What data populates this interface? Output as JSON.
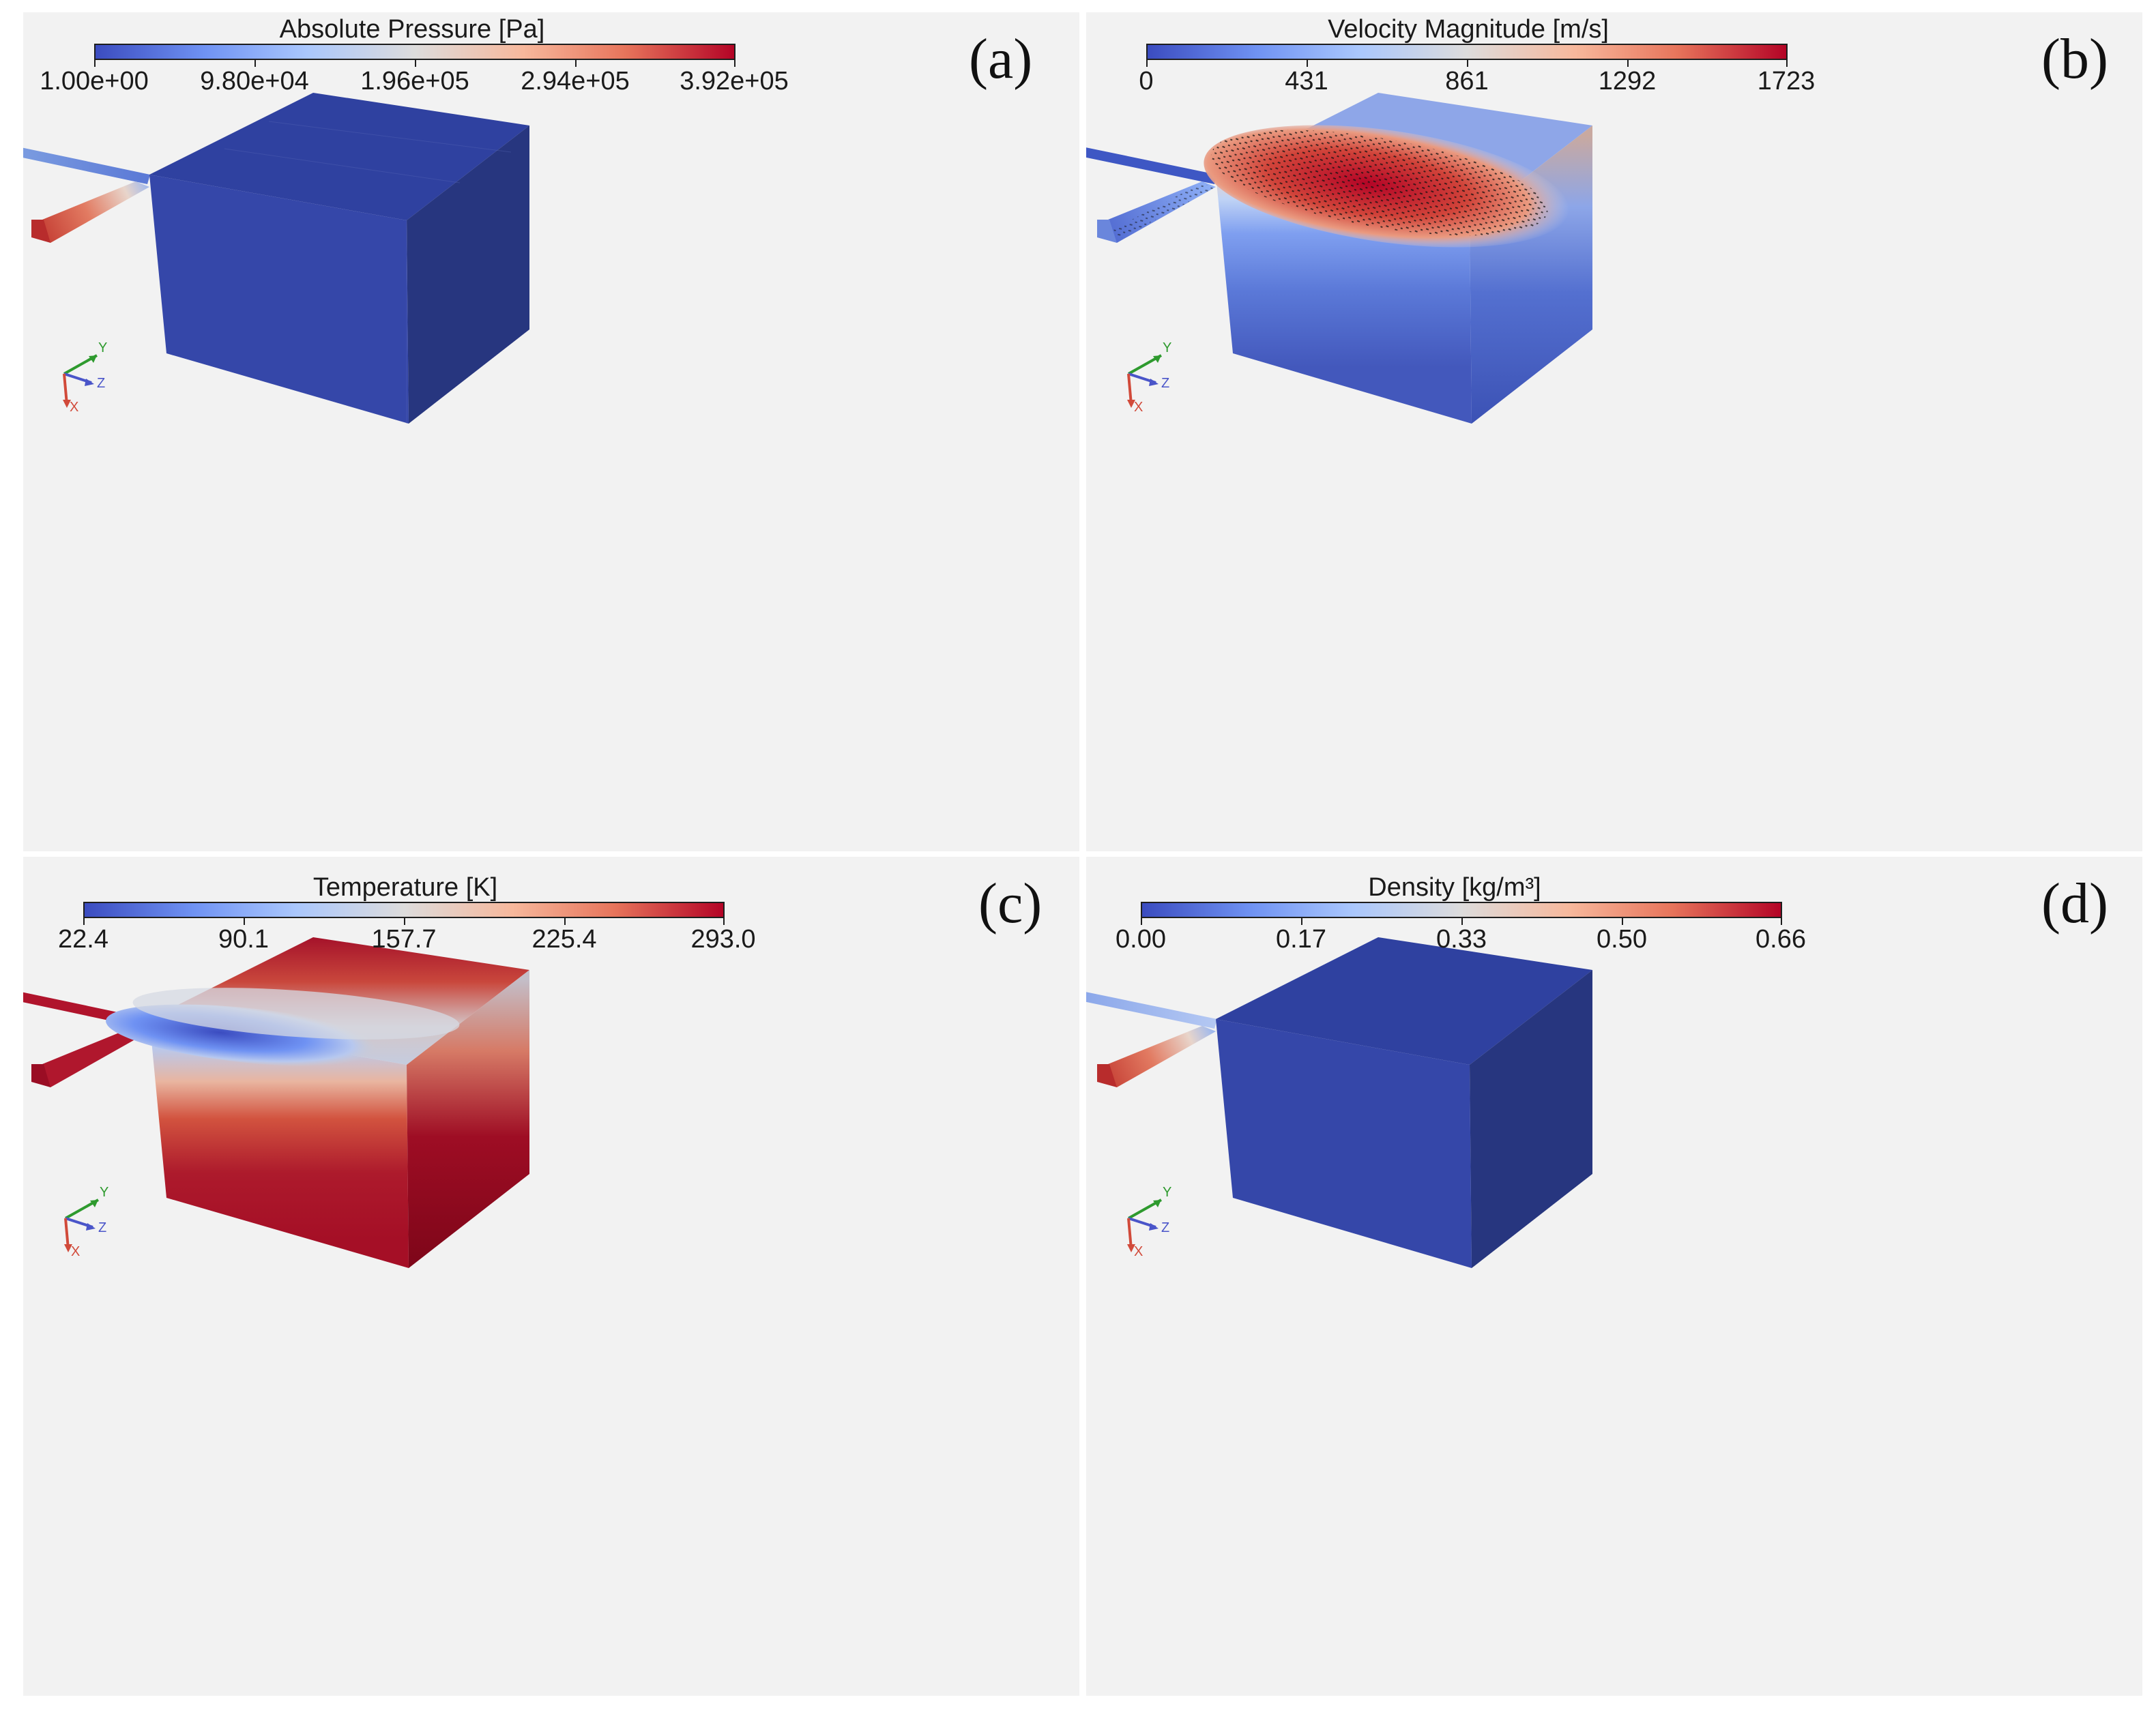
{
  "colormap": [
    "#3b4cc0",
    "#6f92f3",
    "#aac7fd",
    "#dddcdc",
    "#f7b89c",
    "#e7745b",
    "#b40426"
  ],
  "panels": [
    {
      "letter": "(a)",
      "colorbar": {
        "title": "Absolute Pressure [Pa]",
        "labels": [
          "1.00e+00",
          "9.80e+04",
          "1.96e+05",
          "2.94e+05",
          "3.92e+05"
        ]
      },
      "axes": {
        "x": "X",
        "y": "Y",
        "z": "Z"
      }
    },
    {
      "letter": "(b)",
      "colorbar": {
        "title": "Velocity Magnitude [m/s]",
        "labels": [
          "0",
          "431",
          "861",
          "1292",
          "1723"
        ]
      },
      "axes": {
        "x": "X",
        "y": "Y",
        "z": "Z"
      }
    },
    {
      "letter": "(c)",
      "colorbar": {
        "title": "Temperature [K]",
        "labels": [
          "22.4",
          "90.1",
          "157.7",
          "225.4",
          "293.0"
        ]
      },
      "axes": {
        "x": "X",
        "y": "Y",
        "z": "Z"
      }
    },
    {
      "letter": "(d)",
      "colorbar": {
        "title": "Density [kg/m³]",
        "labels": [
          "0.00",
          "0.17",
          "0.33",
          "0.50",
          "0.66"
        ]
      },
      "axes": {
        "x": "X",
        "y": "Y",
        "z": "Z"
      }
    }
  ]
}
